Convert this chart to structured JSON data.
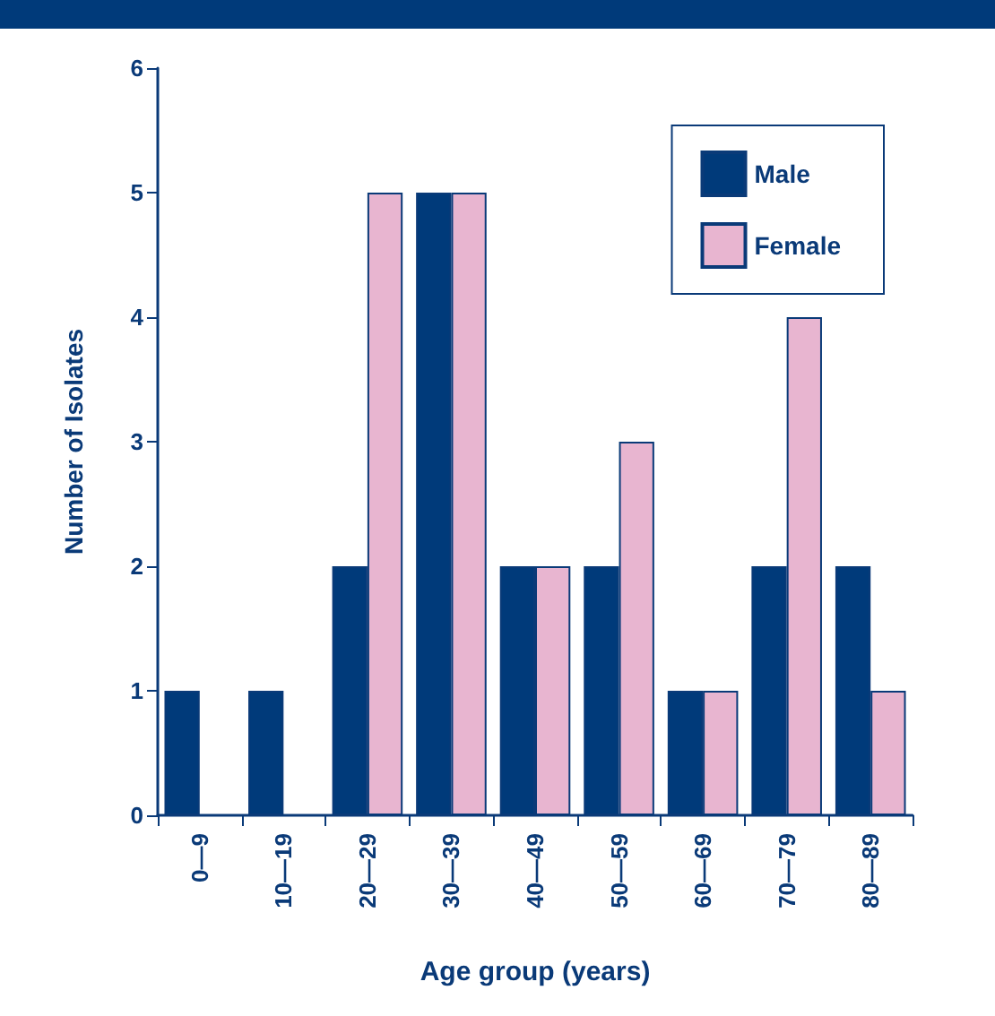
{
  "chart_data": {
    "type": "bar",
    "xlabel": "Age group (years)",
    "ylabel": "Number of Isolates",
    "categories": [
      "0—9",
      "10—19",
      "20—29",
      "30—39",
      "40—49",
      "50—59",
      "60—69",
      "70—79",
      "80—89"
    ],
    "series": [
      {
        "name": "Male",
        "color": "#003a7a",
        "values": [
          1,
          1,
          2,
          5,
          2,
          2,
          1,
          2,
          2
        ]
      },
      {
        "name": "Female",
        "color": "#e8b5d0",
        "values": [
          0,
          0,
          5,
          5,
          2,
          3,
          1,
          4,
          1
        ]
      }
    ],
    "ylim": [
      0,
      6
    ],
    "yticks": [
      0,
      1,
      2,
      3,
      4,
      5,
      6
    ],
    "grid": false,
    "legend": "top right"
  }
}
